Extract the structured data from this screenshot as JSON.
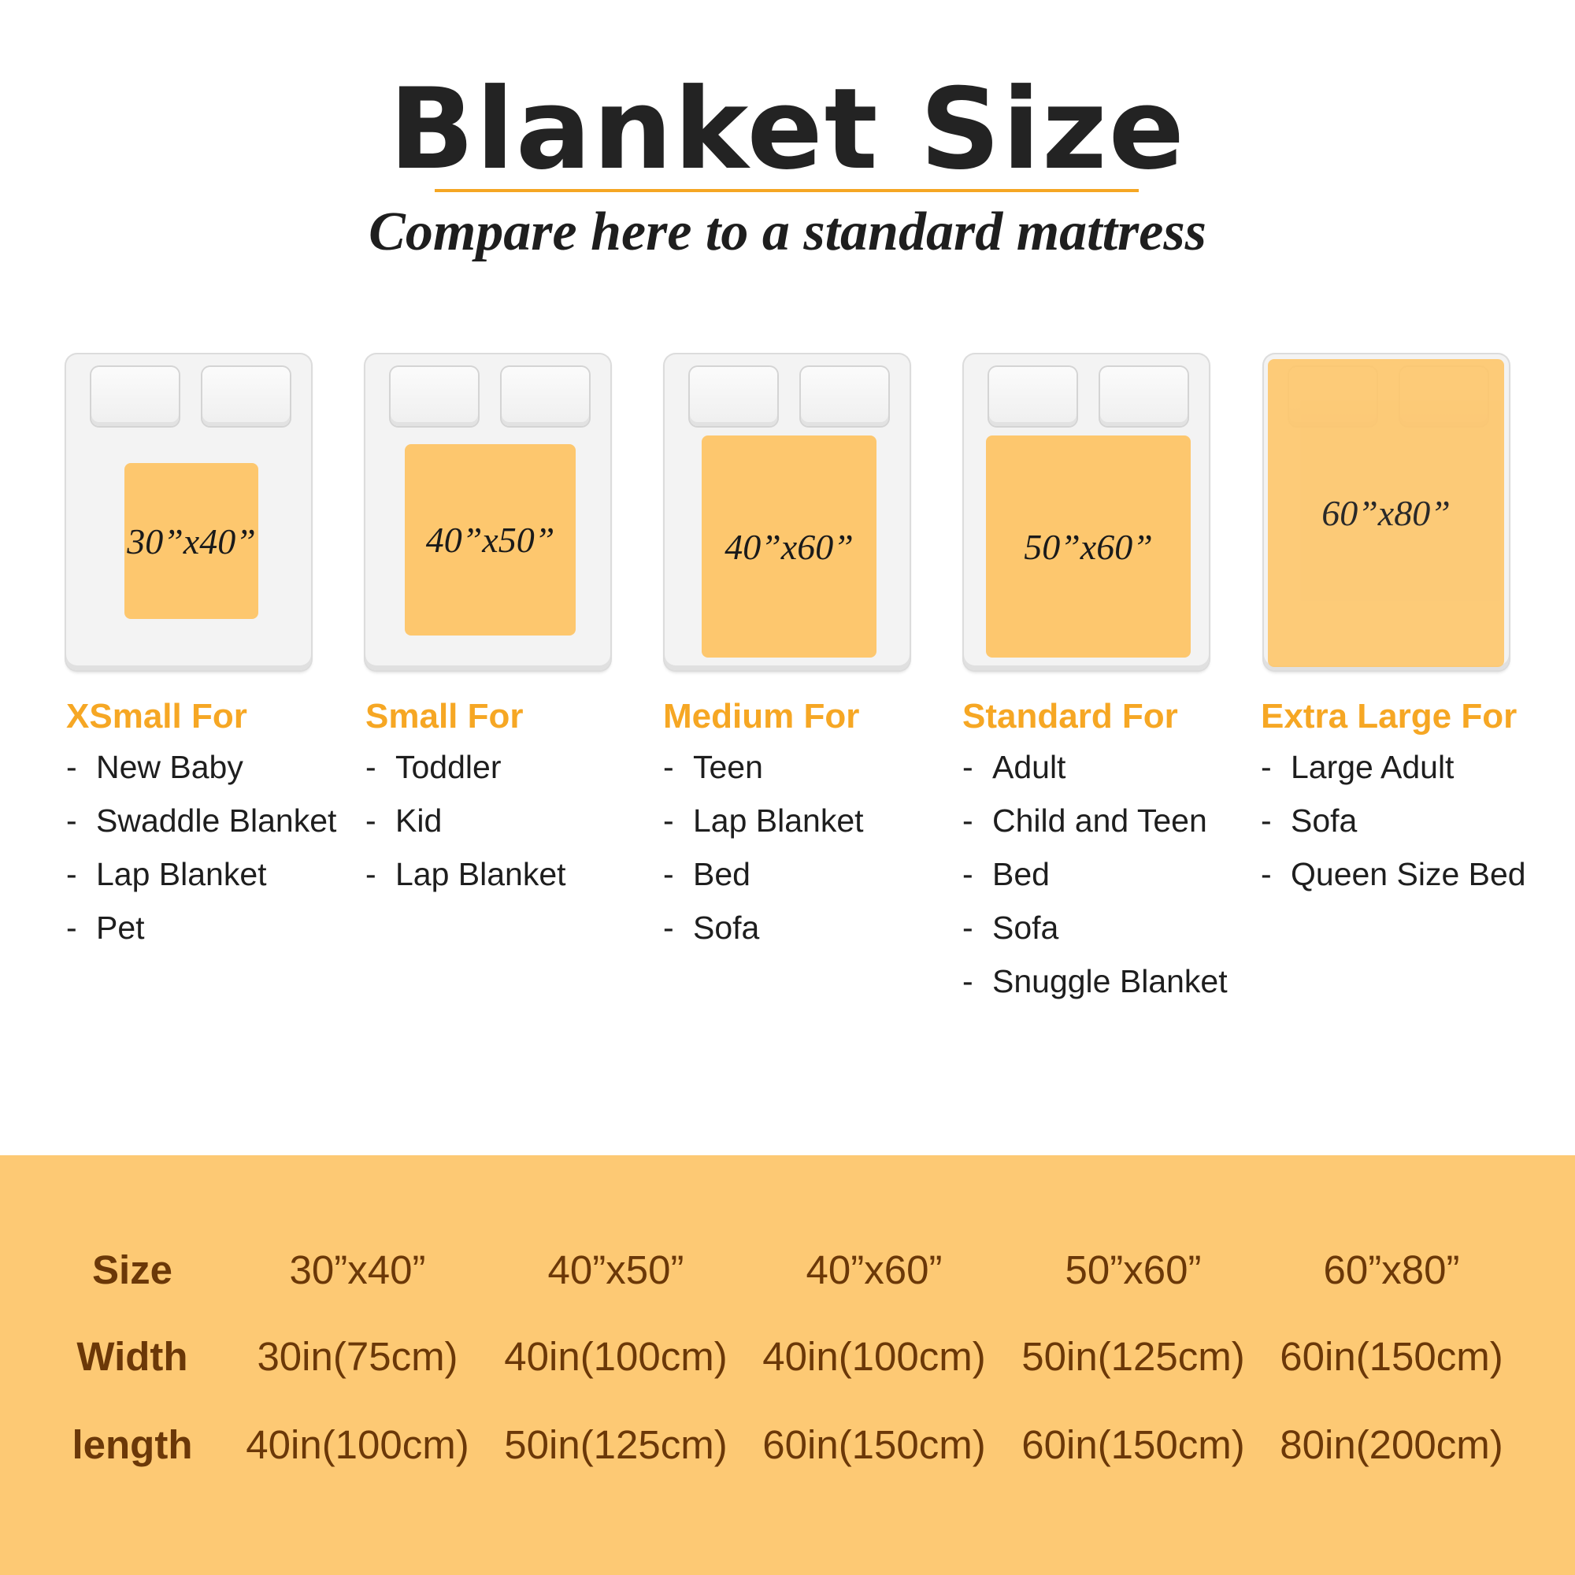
{
  "header": {
    "title": "Blanket Size",
    "subtitle": "Compare here to a standard mattress"
  },
  "colors": {
    "accent": "#f6a724",
    "blanket": "#fdc76e",
    "band": "#fdc974",
    "table_text": "#6b3808"
  },
  "sizes": [
    {
      "label": "30”x40”",
      "heading": "XSmall For",
      "items": [
        "New Baby",
        "Swaddle Blanket",
        "Lap Blanket",
        "Pet"
      ]
    },
    {
      "label": "40”x50”",
      "heading": "Small For",
      "items": [
        "Toddler",
        "Kid",
        "Lap Blanket"
      ]
    },
    {
      "label": "40”x60”",
      "heading": "Medium For",
      "items": [
        "Teen",
        "Lap Blanket",
        "Bed",
        "Sofa"
      ]
    },
    {
      "label": "50”x60”",
      "heading": "Standard For",
      "items": [
        "Adult",
        "Child and Teen",
        "Bed",
        "Sofa",
        "Snuggle Blanket"
      ]
    },
    {
      "label": "60”x80”",
      "heading": "Extra Large For",
      "items": [
        "Large Adult",
        "Sofa",
        "Queen Size Bed"
      ]
    }
  ],
  "bullet": "-",
  "table": {
    "rows": [
      {
        "label": "Size",
        "values": [
          "30”x40”",
          "40”x50”",
          "40”x60”",
          "50”x60”",
          "60”x80”"
        ]
      },
      {
        "label": "Width",
        "values": [
          "30in(75cm)",
          "40in(100cm)",
          "40in(100cm)",
          "50in(125cm)",
          "60in(150cm)"
        ]
      },
      {
        "label": "length",
        "values": [
          "40in(100cm)",
          "50in(125cm)",
          "60in(150cm)",
          "60in(150cm)",
          "80in(200cm)"
        ]
      }
    ]
  }
}
